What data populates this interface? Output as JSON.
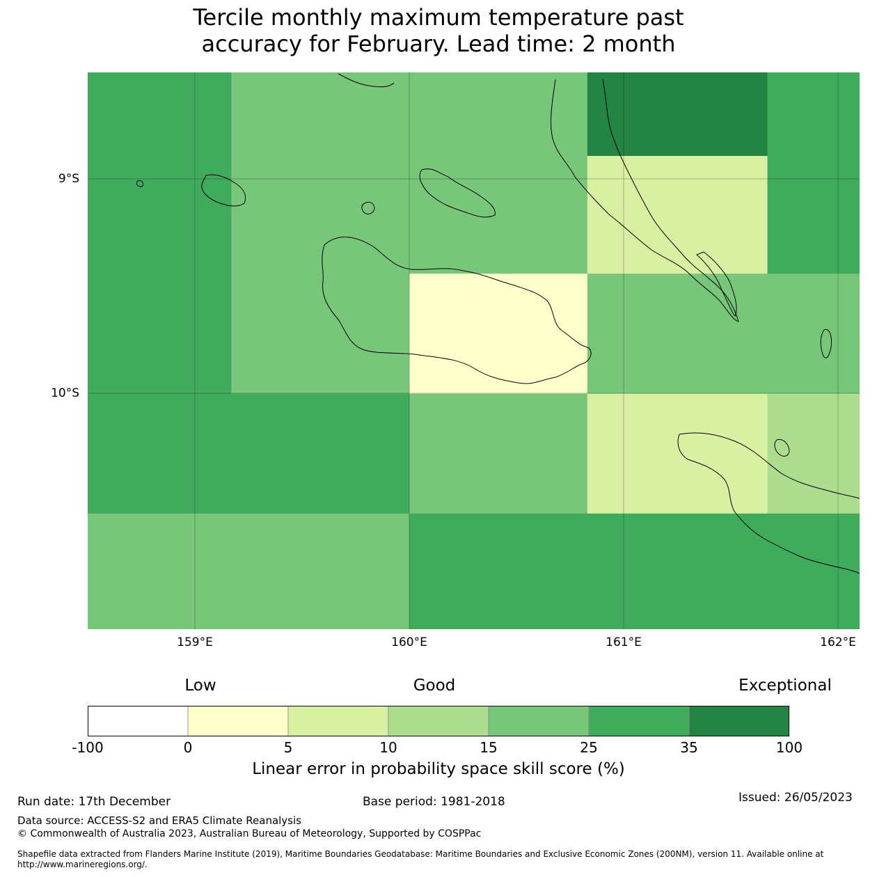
{
  "title_line1": "Tercile monthly maximum temperature past",
  "title_line2": "accuracy for February. Lead time: 2 month",
  "axes": {
    "lat_labels": [
      "9°S",
      "10°S"
    ],
    "lon_labels": [
      "159°E",
      "160°E",
      "161°E",
      "162°E"
    ]
  },
  "legend": {
    "categories": [
      "Low",
      "Good",
      "Exceptional"
    ],
    "ticks": [
      "-100",
      "0",
      "5",
      "10",
      "15",
      "25",
      "35",
      "100"
    ],
    "colors": [
      "#ffffff",
      "#ffffcc",
      "#d9f0a3",
      "#addd8e",
      "#78c679",
      "#41ab5d",
      "#238443"
    ],
    "title": "Linear error in probability space skill score (%)"
  },
  "grid": {
    "lon_range": [
      158.5,
      162.1
    ],
    "lat_range": [
      -8.5,
      -11.1
    ],
    "rows": [
      [
        -8.5,
        -8.89,
        [
          [
            158.5,
            159.17,
            "#41ab5d"
          ],
          [
            159.17,
            160.83,
            "#78c679"
          ],
          [
            160.83,
            161.67,
            "#238443"
          ],
          [
            161.67,
            162.1,
            "#41ab5d"
          ]
        ]
      ],
      [
        -8.89,
        -9.44,
        [
          [
            158.5,
            159.17,
            "#41ab5d"
          ],
          [
            159.17,
            160.83,
            "#78c679"
          ],
          [
            160.83,
            161.67,
            "#d9f0a3"
          ],
          [
            161.67,
            162.1,
            "#41ab5d"
          ]
        ]
      ],
      [
        -9.44,
        -10.0,
        [
          [
            158.5,
            159.17,
            "#41ab5d"
          ],
          [
            159.17,
            160.0,
            "#78c679"
          ],
          [
            160.0,
            160.83,
            "#ffffcc"
          ],
          [
            160.83,
            162.1,
            "#78c679"
          ]
        ]
      ],
      [
        -10.0,
        -10.56,
        [
          [
            158.5,
            160.0,
            "#41ab5d"
          ],
          [
            160.0,
            160.83,
            "#78c679"
          ],
          [
            160.83,
            161.67,
            "#d9f0a3"
          ],
          [
            161.67,
            162.1,
            "#addd8e"
          ]
        ]
      ],
      [
        -10.56,
        -11.1,
        [
          [
            158.5,
            160.0,
            "#78c679"
          ],
          [
            160.0,
            162.1,
            "#41ab5d"
          ]
        ]
      ]
    ]
  },
  "footer": {
    "run_date": "Run date: 17th December",
    "base_period": "Base period: 1981-2018",
    "issued": "Issued: 26/05/2023",
    "data_source": "Data source: ACCESS-S2 and ERA5 Climate Reanalysis",
    "copyright": "© Commonwealth of Australia 2023, Australian Bureau of Meteorology, Supported by COSPPac",
    "shapefile": "Shapefile data extracted from Flanders Marine Institute (2019), Maritime Boundaries Geodatabase: Maritime Boundaries and Exclusive Economic Zones (200NM), version 11. Available online at http://www.marineregions.org/."
  }
}
